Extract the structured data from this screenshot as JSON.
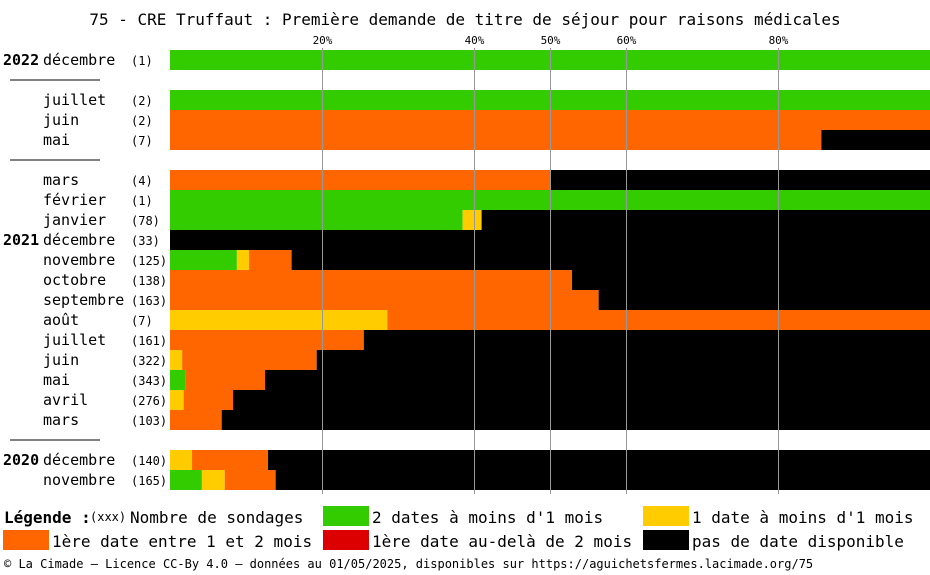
{
  "chart_data": {
    "type": "bar",
    "stacked": true,
    "orientation": "horizontal",
    "title": "75 - CRE Truffaut : Première demande de titre de séjour pour raisons médicales",
    "x_ticks": [
      "20%",
      "40%",
      "50%",
      "60%",
      "80%"
    ],
    "x_tick_values": [
      20,
      40,
      50,
      60,
      80
    ],
    "xlim": [
      0,
      100
    ],
    "grid": true,
    "series_colors": {
      "green": "#33cc00",
      "yellow": "#ffcc00",
      "orange": "#ff6600",
      "red": "#dd0000",
      "black": "#000000"
    },
    "rows": [
      {
        "year": "2022",
        "month": "décembre",
        "count": "(1)",
        "green": 100,
        "yellow": 0,
        "orange": 0,
        "red": 0,
        "black": 0,
        "sep_after": true
      },
      {
        "year": "",
        "month": "juillet",
        "count": "(2)",
        "green": 100,
        "yellow": 0,
        "orange": 0,
        "red": 0,
        "black": 0
      },
      {
        "year": "",
        "month": "juin",
        "count": "(2)",
        "green": 0,
        "yellow": 0,
        "orange": 100,
        "red": 0,
        "black": 0
      },
      {
        "year": "",
        "month": "mai",
        "count": "(7)",
        "green": 0,
        "yellow": 0,
        "orange": 85.7,
        "red": 0,
        "black": 14.3,
        "sep_after": true
      },
      {
        "year": "",
        "month": "mars",
        "count": "(4)",
        "green": 0,
        "yellow": 0,
        "orange": 50,
        "red": 0,
        "black": 50
      },
      {
        "year": "",
        "month": "février",
        "count": "(1)",
        "green": 100,
        "yellow": 0,
        "orange": 0,
        "red": 0,
        "black": 0
      },
      {
        "year": "",
        "month": "janvier",
        "count": "(78)",
        "green": 38.5,
        "yellow": 2.5,
        "orange": 0,
        "red": 0,
        "black": 59
      },
      {
        "year": "2021",
        "month": "décembre",
        "count": "(33)",
        "green": 0,
        "yellow": 0,
        "orange": 0,
        "red": 0,
        "black": 100
      },
      {
        "year": "",
        "month": "novembre",
        "count": "(125)",
        "green": 8.8,
        "yellow": 1.6,
        "orange": 5.6,
        "red": 0,
        "black": 84
      },
      {
        "year": "",
        "month": "octobre",
        "count": "(138)",
        "green": 0,
        "yellow": 0,
        "orange": 52.9,
        "red": 0,
        "black": 47.1
      },
      {
        "year": "",
        "month": "septembre",
        "count": "(163)",
        "green": 0,
        "yellow": 0,
        "orange": 56.4,
        "red": 0,
        "black": 43.6
      },
      {
        "year": "",
        "month": "août",
        "count": "(7)",
        "green": 0,
        "yellow": 28.6,
        "orange": 71.4,
        "red": 0,
        "black": 0
      },
      {
        "year": "",
        "month": "juillet",
        "count": "(161)",
        "green": 0,
        "yellow": 0,
        "orange": 25.5,
        "red": 0,
        "black": 74.5
      },
      {
        "year": "",
        "month": "juin",
        "count": "(322)",
        "green": 0,
        "yellow": 1.6,
        "orange": 17.7,
        "red": 0,
        "black": 80.7
      },
      {
        "year": "",
        "month": "mai",
        "count": "(343)",
        "green": 2,
        "yellow": 0,
        "orange": 10.5,
        "red": 0,
        "black": 87.5
      },
      {
        "year": "",
        "month": "avril",
        "count": "(276)",
        "green": 0,
        "yellow": 1.8,
        "orange": 6.5,
        "red": 0,
        "black": 91.7
      },
      {
        "year": "",
        "month": "mars",
        "count": "(103)",
        "green": 0,
        "yellow": 0,
        "orange": 6.8,
        "red": 0,
        "black": 93.2,
        "sep_after": true
      },
      {
        "year": "2020",
        "month": "décembre",
        "count": "(140)",
        "green": 0,
        "yellow": 2.9,
        "orange": 10,
        "red": 0,
        "black": 87.1
      },
      {
        "year": "",
        "month": "novembre",
        "count": "(165)",
        "green": 4.2,
        "yellow": 3,
        "orange": 6.7,
        "red": 0,
        "black": 86.1
      }
    ]
  },
  "legend": {
    "title": "Légende :",
    "count_marker": "(xxx)",
    "count_text": "Nombre de sondages",
    "items": [
      {
        "key": "green",
        "label": "2 dates à moins d'1 mois"
      },
      {
        "key": "yellow",
        "label": "1 date à moins d'1 mois"
      },
      {
        "key": "orange",
        "label": "1ère date entre 1 et 2 mois"
      },
      {
        "key": "red",
        "label": "1ère date au-delà de 2 mois"
      },
      {
        "key": "black",
        "label": "pas de date disponible"
      }
    ]
  },
  "footer": "© La Cimade — Licence CC-By 4.0 — données au 01/05/2025, disponibles sur https://aguichetsfermes.lacimade.org/75"
}
